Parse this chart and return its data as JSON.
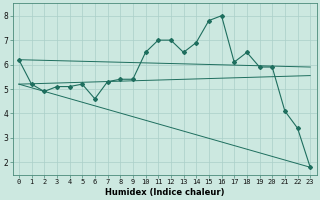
{
  "xlabel": "Humidex (Indice chaleur)",
  "background_color": "#cce8e0",
  "line_color": "#1e6e5e",
  "xlim": [
    -0.5,
    23.5
  ],
  "ylim": [
    1.5,
    8.5
  ],
  "yticks": [
    2,
    3,
    4,
    5,
    6,
    7,
    8
  ],
  "xticks": [
    0,
    1,
    2,
    3,
    4,
    5,
    6,
    7,
    8,
    9,
    10,
    11,
    12,
    13,
    14,
    15,
    16,
    17,
    18,
    19,
    20,
    21,
    22,
    23
  ],
  "series_x": [
    0,
    1,
    2,
    3,
    4,
    5,
    6,
    7,
    8,
    9,
    10,
    11,
    12,
    13,
    14,
    15,
    16,
    17,
    18,
    19,
    20,
    21,
    22,
    23
  ],
  "series_y": [
    6.2,
    5.2,
    4.9,
    5.1,
    5.1,
    5.2,
    4.6,
    5.3,
    5.4,
    5.4,
    6.5,
    7.0,
    7.0,
    6.5,
    6.9,
    7.8,
    8.0,
    6.1,
    6.5,
    5.9,
    5.9,
    4.1,
    3.4,
    1.8
  ],
  "trend1_x": [
    0,
    23
  ],
  "trend1_y": [
    6.2,
    5.9
  ],
  "trend2_x": [
    0,
    23
  ],
  "trend2_y": [
    5.2,
    1.8
  ],
  "trend3_x": [
    0,
    23
  ],
  "trend3_y": [
    5.2,
    5.55
  ],
  "grid_color": "#aacfc8",
  "tick_fontsize": 5.0,
  "xlabel_fontsize": 6.0
}
